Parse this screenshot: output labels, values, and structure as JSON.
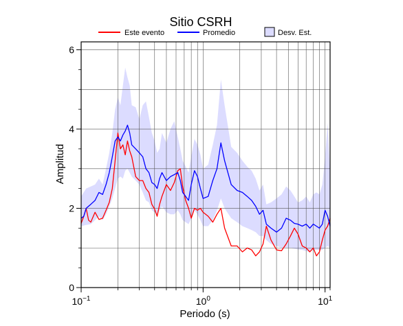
{
  "chart_data": {
    "type": "line",
    "title": "Sitio CSRH",
    "xlabel": "Periodo (s)",
    "ylabel": "Amplitud",
    "xscale": "log",
    "xlim": [
      0.1,
      11.0
    ],
    "ylim": [
      0,
      6.2
    ],
    "grid": true,
    "legend_position": "top",
    "x_ticks": [
      {
        "value": 0.1,
        "base": "10",
        "exp": "−1"
      },
      {
        "value": 1,
        "base": "10",
        "exp": "0"
      },
      {
        "value": 10,
        "base": "10",
        "exp": "1"
      }
    ],
    "y_ticks": [
      0,
      2,
      4,
      6
    ],
    "legend": [
      {
        "label": "Este evento",
        "kind": "line",
        "color": "#ff0000"
      },
      {
        "label": "Promedio",
        "kind": "line",
        "color": "#0000ff"
      },
      {
        "label": "Desv. Est.",
        "kind": "box",
        "color": "#dcdcff"
      }
    ],
    "series": [
      {
        "name": "Este evento",
        "color": "#ff0000",
        "x": [
          0.1,
          0.105,
          0.11,
          0.115,
          0.12,
          0.13,
          0.14,
          0.15,
          0.16,
          0.17,
          0.18,
          0.19,
          0.2,
          0.21,
          0.22,
          0.23,
          0.24,
          0.25,
          0.26,
          0.28,
          0.3,
          0.32,
          0.34,
          0.36,
          0.38,
          0.4,
          0.42,
          0.44,
          0.46,
          0.5,
          0.54,
          0.58,
          0.62,
          0.65,
          0.68,
          0.72,
          0.76,
          0.8,
          0.85,
          0.9,
          0.95,
          1.0,
          1.1,
          1.2,
          1.3,
          1.4,
          1.5,
          1.7,
          1.9,
          2.1,
          2.3,
          2.5,
          2.7,
          2.9,
          3.1,
          3.3,
          3.6,
          4.0,
          4.4,
          4.8,
          5.2,
          5.6,
          6.0,
          6.5,
          7.0,
          7.5,
          8.0,
          8.5,
          9.0,
          9.5,
          10.0,
          10.5,
          11.0
        ],
        "y": [
          1.62,
          1.8,
          2.0,
          1.7,
          1.65,
          1.9,
          1.72,
          1.75,
          1.95,
          2.15,
          2.5,
          3.2,
          3.9,
          3.5,
          3.6,
          3.35,
          3.7,
          3.45,
          3.3,
          2.8,
          2.7,
          2.7,
          2.5,
          2.4,
          2.1,
          1.98,
          1.8,
          2.1,
          2.3,
          2.6,
          2.45,
          2.65,
          2.95,
          3.0,
          2.55,
          2.2,
          2.0,
          1.75,
          2.0,
          1.95,
          2.0,
          1.9,
          1.8,
          1.65,
          1.85,
          2.0,
          1.5,
          1.05,
          1.05,
          0.9,
          1.0,
          0.95,
          0.8,
          0.9,
          1.1,
          1.55,
          1.2,
          0.95,
          0.93,
          1.1,
          1.3,
          1.5,
          1.35,
          1.05,
          1.0,
          0.9,
          1.0,
          0.8,
          0.9,
          1.2,
          1.45,
          1.55,
          1.75
        ]
      },
      {
        "name": "Promedio",
        "color": "#0000ff",
        "x": [
          0.1,
          0.105,
          0.11,
          0.12,
          0.13,
          0.14,
          0.15,
          0.16,
          0.17,
          0.18,
          0.19,
          0.2,
          0.21,
          0.22,
          0.23,
          0.24,
          0.25,
          0.26,
          0.28,
          0.3,
          0.32,
          0.34,
          0.36,
          0.38,
          0.4,
          0.42,
          0.44,
          0.46,
          0.5,
          0.54,
          0.58,
          0.62,
          0.65,
          0.68,
          0.72,
          0.76,
          0.8,
          0.85,
          0.9,
          0.95,
          1.0,
          1.1,
          1.2,
          1.3,
          1.4,
          1.5,
          1.7,
          1.9,
          2.1,
          2.3,
          2.5,
          2.7,
          2.9,
          3.1,
          3.3,
          3.6,
          4.0,
          4.4,
          4.8,
          5.2,
          5.6,
          6.0,
          6.5,
          7.0,
          7.5,
          8.0,
          8.5,
          9.0,
          9.5,
          10.0,
          10.5,
          11.0
        ],
        "y": [
          1.75,
          1.8,
          2.0,
          2.1,
          2.2,
          2.4,
          2.35,
          2.6,
          2.9,
          3.3,
          3.7,
          3.8,
          3.7,
          3.85,
          3.95,
          4.1,
          3.9,
          3.6,
          3.5,
          3.4,
          3.3,
          3.0,
          2.9,
          2.65,
          2.6,
          2.5,
          2.75,
          2.9,
          2.7,
          2.8,
          2.85,
          2.9,
          2.7,
          2.4,
          2.3,
          2.2,
          2.6,
          2.95,
          2.8,
          2.5,
          2.25,
          2.3,
          2.7,
          3.0,
          3.65,
          3.2,
          2.6,
          2.45,
          2.4,
          2.3,
          2.2,
          2.05,
          1.85,
          1.95,
          1.6,
          1.5,
          1.4,
          1.5,
          1.75,
          1.7,
          1.62,
          1.6,
          1.55,
          1.6,
          1.5,
          1.6,
          1.55,
          1.5,
          1.6,
          1.95,
          1.8,
          1.55
        ]
      }
    ],
    "band": {
      "name": "Desv. Est.",
      "color": "#dcdcff",
      "x": [
        0.1,
        0.11,
        0.12,
        0.13,
        0.14,
        0.15,
        0.16,
        0.17,
        0.18,
        0.19,
        0.2,
        0.21,
        0.22,
        0.23,
        0.24,
        0.25,
        0.26,
        0.28,
        0.3,
        0.32,
        0.34,
        0.36,
        0.38,
        0.4,
        0.42,
        0.44,
        0.46,
        0.5,
        0.54,
        0.58,
        0.62,
        0.65,
        0.68,
        0.72,
        0.76,
        0.8,
        0.85,
        0.9,
        0.95,
        1.0,
        1.1,
        1.2,
        1.3,
        1.4,
        1.5,
        1.7,
        1.9,
        2.1,
        2.3,
        2.5,
        2.7,
        2.9,
        3.1,
        3.3,
        3.6,
        4.0,
        4.4,
        4.8,
        5.2,
        5.6,
        6.0,
        6.5,
        7.0,
        7.5,
        8.0,
        8.5,
        9.0,
        9.5,
        10.0,
        10.5,
        11.0
      ],
      "upper": [
        2.3,
        2.5,
        2.55,
        2.6,
        2.75,
        2.6,
        3.0,
        3.4,
        3.9,
        4.5,
        4.8,
        4.6,
        5.1,
        5.55,
        5.3,
        5.1,
        4.6,
        4.55,
        4.25,
        4.6,
        4.7,
        4.3,
        3.9,
        3.7,
        3.4,
        3.5,
        3.9,
        3.65,
        4.0,
        4.2,
        3.8,
        3.5,
        3.2,
        3.05,
        2.9,
        3.3,
        3.75,
        3.6,
        3.35,
        3.0,
        3.1,
        3.6,
        4.1,
        5.25,
        4.6,
        3.55,
        3.4,
        3.2,
        3.05,
        2.95,
        2.75,
        2.45,
        2.6,
        2.1,
        2.15,
        2.25,
        2.35,
        2.55,
        2.45,
        2.3,
        2.15,
        2.2,
        2.3,
        2.15,
        2.35,
        2.4,
        2.35,
        2.6,
        3.3,
        4.15,
        2.9
      ],
      "lower": [
        1.55,
        1.58,
        1.6,
        1.7,
        1.8,
        1.7,
        1.85,
        2.05,
        2.25,
        2.5,
        2.75,
        2.8,
        2.75,
        2.95,
        3.0,
        2.9,
        2.8,
        2.7,
        2.6,
        2.4,
        2.2,
        2.15,
        1.95,
        1.9,
        1.85,
        1.95,
        2.05,
        1.9,
        1.85,
        1.85,
        1.95,
        1.85,
        1.7,
        1.65,
        1.6,
        1.75,
        1.95,
        1.85,
        1.7,
        1.55,
        1.55,
        1.7,
        1.95,
        2.25,
        2.0,
        1.75,
        1.65,
        1.55,
        1.5,
        1.45,
        1.4,
        1.3,
        1.3,
        1.2,
        1.1,
        1.05,
        1.0,
        1.0,
        1.0,
        0.98,
        0.96,
        0.95,
        0.92,
        0.9,
        0.95,
        0.95,
        0.95,
        0.95,
        1.0,
        1.05,
        1.0
      ]
    }
  }
}
